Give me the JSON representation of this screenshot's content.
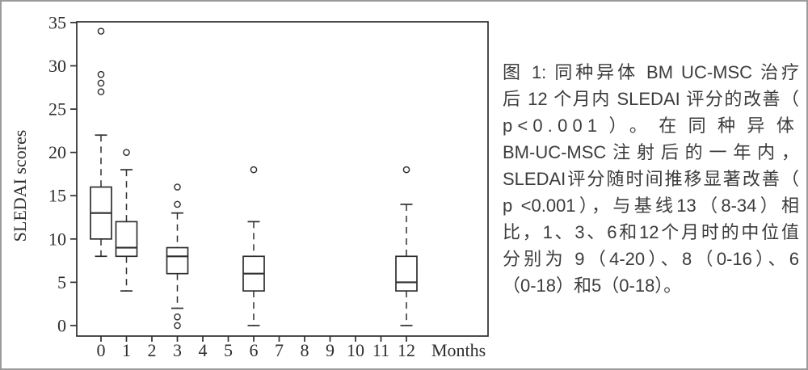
{
  "window": {
    "background": "#ffffff",
    "border_color": "#9b9b9b"
  },
  "chart_data": {
    "type": "boxplot",
    "title": "",
    "xlabel": "Months",
    "ylabel": "SLEDAI scores",
    "ylim": [
      0,
      35
    ],
    "yticks": [
      0,
      5,
      10,
      15,
      20,
      25,
      30,
      35
    ],
    "xticks": [
      "0",
      "1",
      "2",
      "3",
      "4",
      "5",
      "6",
      "7",
      "8",
      "9",
      "10",
      "11",
      "12"
    ],
    "grid": false,
    "legend": "none",
    "frame": true,
    "series": [
      {
        "month": 0,
        "label": "0",
        "whisker_low": 8,
        "q1": 10,
        "median": 13,
        "q3": 16,
        "whisker_high": 22,
        "outliers": [
          27,
          28,
          29,
          34
        ]
      },
      {
        "month": 1,
        "label": "1",
        "whisker_low": 4,
        "q1": 8,
        "median": 9,
        "q3": 12,
        "whisker_high": 18,
        "outliers": [
          20
        ]
      },
      {
        "month": 3,
        "label": "3",
        "whisker_low": 2,
        "q1": 6,
        "median": 8,
        "q3": 9,
        "whisker_high": 13,
        "outliers": [
          0,
          1,
          14,
          16
        ]
      },
      {
        "month": 6,
        "label": "6",
        "whisker_low": 0,
        "q1": 4,
        "median": 6,
        "q3": 8,
        "whisker_high": 12,
        "outliers": [
          18
        ]
      },
      {
        "month": 12,
        "label": "12",
        "whisker_low": 0,
        "q1": 4,
        "median": 5,
        "q3": 8,
        "whisker_high": 14,
        "outliers": [
          18
        ]
      }
    ]
  },
  "caption": {
    "lines": [
      "图 1: 同种异体 BM UC-MSC 治疗",
      "后 12 个月内 SLEDAI 评分的改善（",
      "p<0.001）。在同种异体",
      "BM-UC-MSC注射后的一年内，",
      "SLEDAI评分随时间推移显著改善（",
      "p <0.001），与基线13（8-34）相",
      "比，1、3、6和12个月时的中位值",
      "分别为 9（4-20）、8（0-16）、6",
      "（0-18）和5（0-18）。"
    ]
  },
  "colors": {
    "chart_stroke": "#2e2e2e",
    "caption_text": "#3c3c3c",
    "border": "#9b9b9b",
    "background": "#ffffff"
  }
}
